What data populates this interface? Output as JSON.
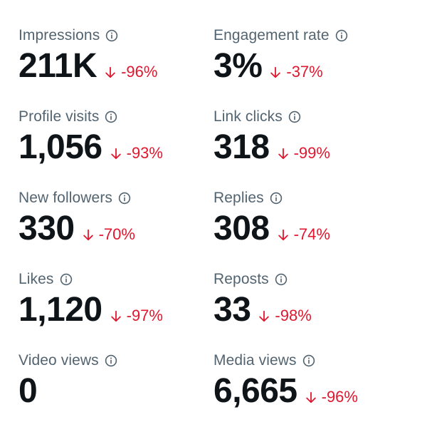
{
  "colors": {
    "label": "#536471",
    "value": "#0f1419",
    "negative": "#e0172e"
  },
  "metrics": [
    {
      "label": "Impressions",
      "value": "211K",
      "change": "-96%"
    },
    {
      "label": "Engagement rate",
      "value": "3%",
      "change": "-37%"
    },
    {
      "label": "Profile visits",
      "value": "1,056",
      "change": "-93%"
    },
    {
      "label": "Link clicks",
      "value": "318",
      "change": "-99%"
    },
    {
      "label": "New followers",
      "value": "330",
      "change": "-70%"
    },
    {
      "label": "Replies",
      "value": "308",
      "change": "-74%"
    },
    {
      "label": "Likes",
      "value": "1,120",
      "change": "-97%"
    },
    {
      "label": "Reposts",
      "value": "33",
      "change": "-98%"
    },
    {
      "label": "Video views",
      "value": "0",
      "change": ""
    },
    {
      "label": "Media views",
      "value": "6,665",
      "change": "-96%"
    }
  ],
  "icons": {
    "info": "info-circle-icon",
    "down": "arrow-down-icon"
  }
}
